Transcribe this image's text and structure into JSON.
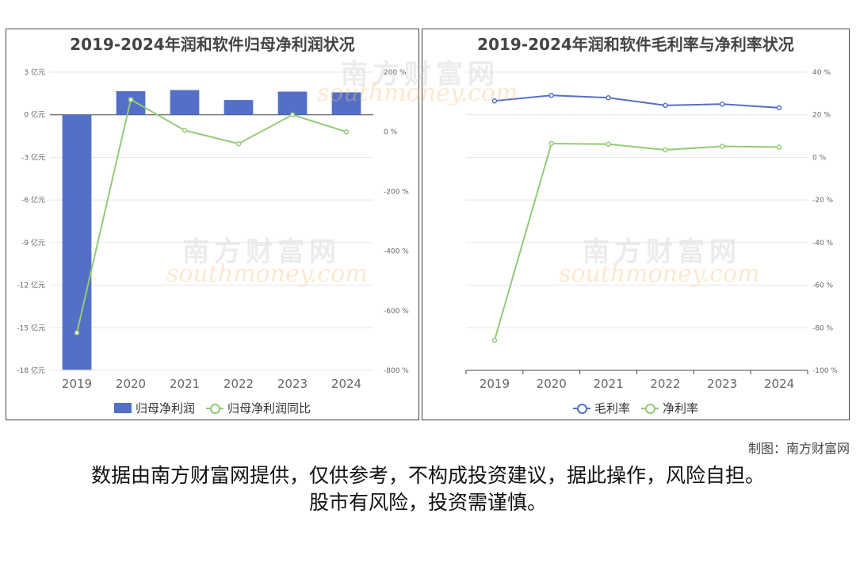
{
  "watermark": {
    "cn": "南方财富网",
    "en": "southmoney.com"
  },
  "footer": {
    "credit": "制图：南方财富网",
    "line1": "数据由南方财富网提供，仅供参考，不构成投资建议，据此操作，风险自担。",
    "line2": "股市有风险，投资需谨慎。"
  },
  "chart_data": [
    {
      "type": "bar",
      "title": "2019-2024年润和软件归母净利润状况",
      "categories": [
        "2019",
        "2020",
        "2021",
        "2022",
        "2023",
        "2024"
      ],
      "y_left": {
        "ylim": [
          -18,
          3
        ],
        "ticks": [
          3,
          0,
          -3,
          -6,
          -9,
          -12,
          -15,
          -18
        ],
        "unit": "亿元"
      },
      "y_right": {
        "ylim": [
          -800,
          200
        ],
        "ticks": [
          200,
          0,
          -200,
          -400,
          -600,
          -800
        ],
        "unit": "%"
      },
      "series": [
        {
          "name": "归母净利润",
          "kind": "bar",
          "axis": "left",
          "color": "#5470c6",
          "values": [
            -17.96,
            1.66,
            1.74,
            1.04,
            1.63,
            1.58
          ]
        },
        {
          "name": "归母净利润同比",
          "kind": "line",
          "axis": "right",
          "color": "#91cc75",
          "values": [
            -674,
            108,
            5,
            -40,
            57,
            0
          ]
        }
      ],
      "grid": true,
      "legend": "bottom"
    },
    {
      "type": "line",
      "title": "2019-2024年润和软件毛利率与净利率状况",
      "categories": [
        "2019",
        "2020",
        "2021",
        "2022",
        "2023",
        "2024"
      ],
      "y_right": {
        "ylim": [
          -100,
          40
        ],
        "ticks": [
          40,
          20,
          0,
          -20,
          -40,
          -60,
          -80,
          -100
        ],
        "unit": "%"
      },
      "series": [
        {
          "name": "毛利率",
          "kind": "line",
          "color": "#5470c6",
          "values": [
            26.5,
            29.1,
            28.0,
            24.4,
            25.0,
            23.3
          ]
        },
        {
          "name": "净利率",
          "kind": "line",
          "color": "#91cc75",
          "values": [
            -85.9,
            6.5,
            6.2,
            3.5,
            5.2,
            4.8
          ]
        }
      ],
      "grid": true,
      "legend": "bottom"
    }
  ]
}
